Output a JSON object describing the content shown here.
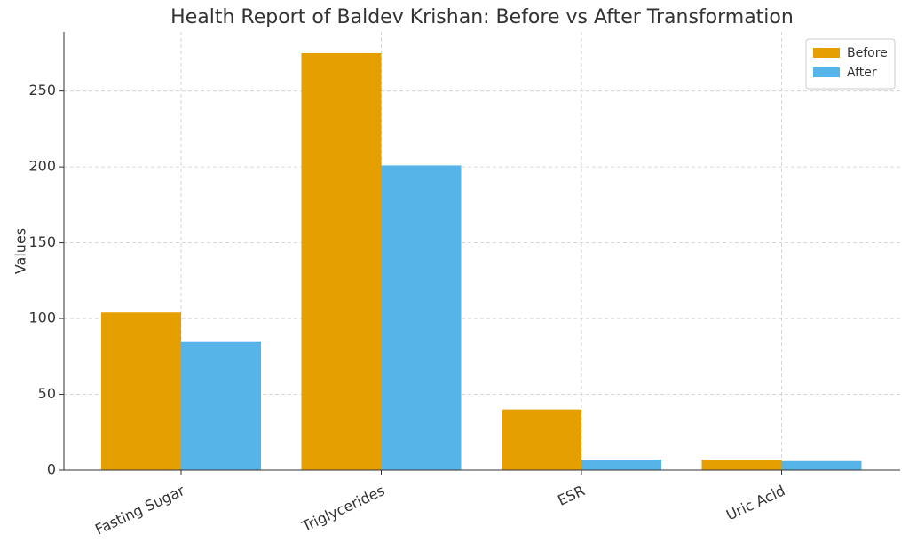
{
  "chart_data": {
    "type": "bar",
    "title": "Health Report of Baldev Krishan: Before vs After Transformation",
    "y_label": "Values",
    "categories": [
      "Fasting Sugar",
      "Triglycerides",
      "ESR",
      "Uric Acid"
    ],
    "series": [
      {
        "name": "Before",
        "color": "#E69F00",
        "values": [
          104,
          275,
          40,
          7
        ]
      },
      {
        "name": "After",
        "color": "#56B4E9",
        "values": [
          85,
          201,
          7,
          6
        ]
      }
    ],
    "ylim": [
      0,
      289
    ],
    "yticks": [
      0,
      50,
      100,
      150,
      200,
      250
    ],
    "grid": true,
    "legend": "upper right"
  }
}
